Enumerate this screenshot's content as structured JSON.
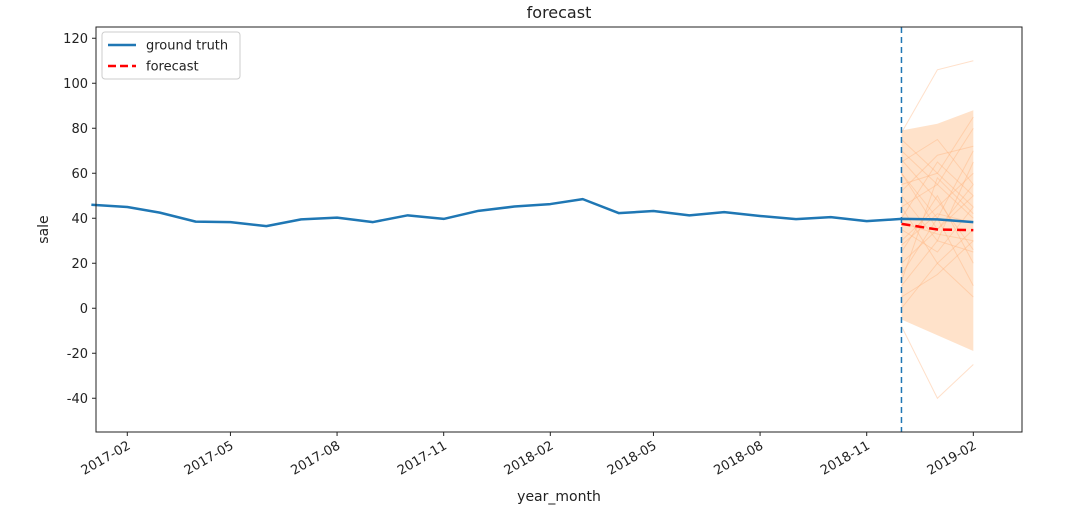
{
  "chart_data": {
    "type": "line",
    "title": "forecast",
    "xlabel": "year_month",
    "ylabel": "sale",
    "xlim": [
      "2017-01-05",
      "2019-03-15"
    ],
    "ylim": [
      -55,
      125
    ],
    "x_ticks": [
      "2017-02",
      "2017-05",
      "2017-08",
      "2017-11",
      "2018-02",
      "2018-05",
      "2018-08",
      "2018-11",
      "2019-02"
    ],
    "y_ticks": [
      -40,
      -20,
      0,
      20,
      40,
      60,
      80,
      100,
      120
    ],
    "forecast_start": "2018-12",
    "legend": {
      "position": "top-left",
      "entries": [
        "ground truth",
        "forecast"
      ]
    },
    "colors": {
      "ground_truth": "#1f77b4",
      "forecast": "#ff0000",
      "samples": "#ffb27a",
      "band": "#ffd8b8",
      "vline": "#1f77b4"
    },
    "series": [
      {
        "name": "ground truth",
        "style": "solid",
        "x": [
          "2017-01",
          "2017-02",
          "2017-03",
          "2017-04",
          "2017-05",
          "2017-06",
          "2017-07",
          "2017-08",
          "2017-09",
          "2017-10",
          "2017-11",
          "2017-12",
          "2018-01",
          "2018-02",
          "2018-03",
          "2018-04",
          "2018-05",
          "2018-06",
          "2018-07",
          "2018-08",
          "2018-09",
          "2018-10",
          "2018-11",
          "2018-12",
          "2019-01",
          "2019-02"
        ],
        "values": [
          46,
          45,
          42.5,
          38.5,
          38.3,
          36.5,
          39.5,
          40.3,
          38.3,
          41.3,
          39.7,
          43.3,
          45.2,
          46.3,
          48.5,
          42.3,
          43.2,
          41.3,
          42.7,
          41.0,
          39.6,
          40.5,
          38.7,
          39.7,
          39.5,
          38.3
        ]
      },
      {
        "name": "forecast",
        "style": "dashed",
        "x": [
          "2018-12",
          "2019-01",
          "2019-02"
        ],
        "values": [
          37.5,
          35,
          34.7
        ]
      }
    ],
    "prediction_band": {
      "x": [
        "2018-12",
        "2019-01",
        "2019-02"
      ],
      "upper": [
        79,
        82,
        88
      ],
      "lower": [
        -5,
        -12,
        -19
      ]
    },
    "sample_paths": [
      [
        20,
        35,
        50
      ],
      [
        60,
        40,
        70
      ],
      [
        10,
        30,
        25
      ],
      [
        55,
        60,
        45
      ],
      [
        30,
        45,
        60
      ],
      [
        45,
        20,
        35
      ],
      [
        70,
        55,
        80
      ],
      [
        5,
        15,
        30
      ],
      [
        40,
        65,
        50
      ],
      [
        25,
        50,
        20
      ],
      [
        50,
        30,
        65
      ],
      [
        65,
        75,
        55
      ],
      [
        15,
        40,
        10
      ],
      [
        35,
        25,
        45
      ],
      [
        75,
        60,
        85
      ],
      [
        0,
        20,
        5
      ],
      [
        45,
        55,
        40
      ],
      [
        60,
        35,
        55
      ],
      [
        28,
        42,
        38
      ],
      [
        52,
        68,
        72
      ],
      [
        78,
        106,
        110
      ],
      [
        -8,
        -40,
        -25
      ],
      [
        38,
        33,
        30
      ],
      [
        12,
        58,
        42
      ],
      [
        66,
        48,
        26
      ]
    ]
  }
}
